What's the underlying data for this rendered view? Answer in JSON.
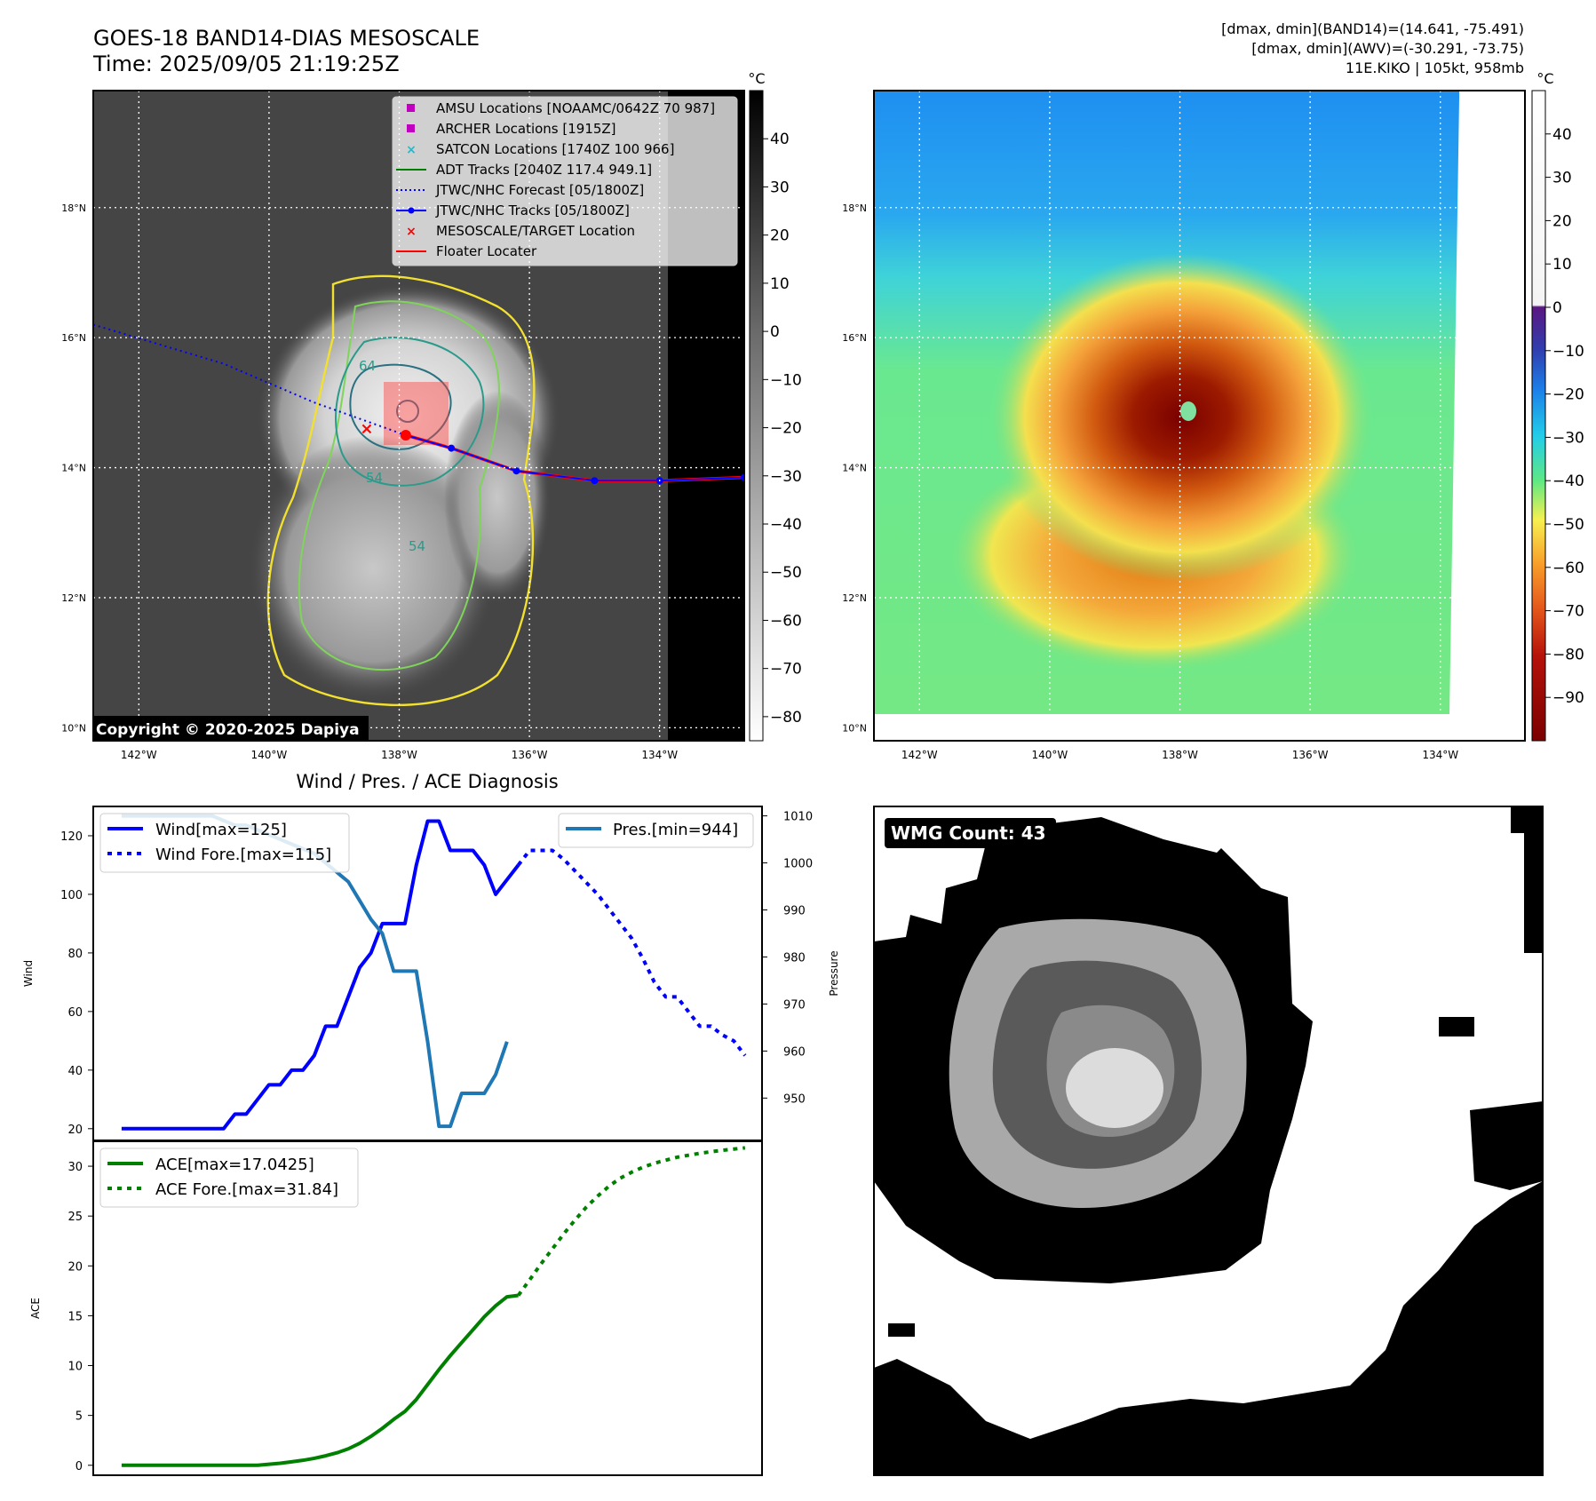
{
  "header": {
    "title": "GOES-18 BAND14-DIAS MESOSCALE",
    "time": "Time: 2025/09/05 21:19:25Z",
    "stats_line1": "[dmax, dmin](BAND14)=(14.641, -75.491)",
    "stats_line2": "[dmax, dmin](AWV)=(-30.291, -73.75)",
    "stats_line3": "11E.KIKO | 105kt, 958mb"
  },
  "map_grid": {
    "lon_labels": [
      "142°W",
      "140°W",
      "138°W",
      "136°W",
      "134°W"
    ],
    "lat_labels": [
      "18°N",
      "16°N",
      "14°N",
      "12°N",
      "10°N"
    ],
    "lon_extent": [
      -142.7,
      -132.7
    ],
    "lat_extent": [
      9.8,
      19.8
    ]
  },
  "ir_panel": {
    "colorbar_unit": "°C",
    "colorbar_ticks": [
      "40",
      "30",
      "20",
      "10",
      "0",
      "−10",
      "−20",
      "−30",
      "−40",
      "−50",
      "−60",
      "−70",
      "−80"
    ],
    "colorbar_range": [
      -85,
      50
    ],
    "copyright": "Copyright © 2020-2025 Dapiya",
    "contour_labels": [
      "64",
      "54",
      "54"
    ],
    "legend": [
      {
        "label": "AMSU Locations [NOAAMC/0642Z 70 987]",
        "marker": "square",
        "color": "#bf00bf"
      },
      {
        "label": "ARCHER Locations [1915Z]",
        "marker": "square",
        "color": "#bf00bf"
      },
      {
        "label": "SATCON Locations [1740Z 100 966]",
        "marker": "x",
        "color": "#17becf"
      },
      {
        "label": "ADT Tracks [2040Z 117.4 949.1]",
        "marker": "line",
        "color": "#008000"
      },
      {
        "label": "JTWC/NHC Forecast [05/1800Z]",
        "marker": "dotted",
        "color": "#0000ff"
      },
      {
        "label": "JTWC/NHC Tracks [05/1800Z]",
        "marker": "line-dot",
        "color": "#0000ff"
      },
      {
        "label": "MESOSCALE/TARGET Location",
        "marker": "x",
        "color": "#ff0000"
      },
      {
        "label": "Floater Locater",
        "marker": "line",
        "color": "#ff0000"
      }
    ],
    "storm_center": {
      "lon": -137.9,
      "lat": 14.5
    },
    "target_location": {
      "lon": -138.5,
      "lat": 14.6
    },
    "forecast_track": [
      [
        -142.7,
        16.2
      ],
      [
        -140.7,
        15.6
      ],
      [
        -139.3,
        15.0
      ],
      [
        -137.9,
        14.5
      ]
    ],
    "observed_track": [
      [
        -137.9,
        14.5
      ],
      [
        -137.2,
        14.3
      ],
      [
        -136.2,
        13.95
      ],
      [
        -135.0,
        13.8
      ],
      [
        -134.0,
        13.8
      ],
      [
        -132.7,
        13.85
      ]
    ]
  },
  "awv_panel": {
    "colorbar_unit": "°C",
    "colorbar_ticks": [
      "40",
      "30",
      "20",
      "10",
      "0",
      "−10",
      "−20",
      "−30",
      "−40",
      "−50",
      "−60",
      "−70",
      "−80",
      "−90"
    ],
    "colorbar_range": [
      -100,
      50
    ]
  },
  "chart_data": [
    {
      "type": "line",
      "title": "Wind / Pres. / ACE Diagnosis",
      "ylabel": "Wind",
      "ylabel_right": "Pressure",
      "ylim": [
        16,
        130
      ],
      "ylim_right": [
        941,
        1012
      ],
      "xlim": [
        -2.5,
        56.5
      ],
      "yticks": [
        20,
        40,
        60,
        80,
        100,
        120
      ],
      "yticks_right": [
        950,
        960,
        970,
        980,
        990,
        1000,
        1010
      ],
      "series": [
        {
          "name": "Wind[max=125]",
          "style": "solid",
          "color": "#0000ff",
          "x": [
            0,
            1,
            2,
            3,
            4,
            5,
            6,
            7,
            8,
            9,
            10,
            11,
            12,
            13,
            14,
            15,
            16,
            17,
            18,
            19,
            20,
            21,
            22,
            23,
            24,
            25,
            26,
            27,
            28,
            29,
            30,
            31,
            32,
            33,
            34,
            35
          ],
          "values": [
            20,
            20,
            20,
            20,
            20,
            20,
            20,
            20,
            20,
            20,
            25,
            25,
            30,
            35,
            35,
            40,
            40,
            45,
            55,
            55,
            65,
            75,
            80,
            90,
            90,
            90,
            110,
            125,
            125,
            115,
            115,
            115,
            110,
            100,
            105,
            110
          ]
        },
        {
          "name": "Wind Fore.[max=115]",
          "style": "dotted",
          "color": "#0000ff",
          "x": [
            35,
            36,
            37,
            38,
            39,
            40,
            41,
            42,
            43,
            44,
            45,
            46,
            47,
            48,
            49,
            50,
            51,
            52,
            53,
            54,
            55
          ],
          "values": [
            110,
            115,
            115,
            115,
            112,
            108,
            104,
            100,
            95,
            90,
            85,
            78,
            70,
            65,
            65,
            60,
            55,
            55,
            52,
            50,
            45
          ]
        },
        {
          "name": "Pres.[min=944]",
          "style": "solid",
          "color": "#1f77b4",
          "axis": "right",
          "x": [
            0,
            1,
            2,
            3,
            4,
            5,
            6,
            7,
            8,
            9,
            10,
            11,
            12,
            13,
            14,
            15,
            16,
            17,
            18,
            19,
            20,
            21,
            22,
            23,
            24,
            25,
            26,
            27,
            28,
            29,
            30,
            31,
            32,
            33,
            34
          ],
          "values": [
            1010,
            1010,
            1010,
            1010,
            1010,
            1010,
            1010,
            1010,
            1010,
            1009,
            1008,
            1008,
            1007,
            1006,
            1005,
            1004,
            1003,
            1002,
            1000,
            998,
            996,
            992,
            988,
            985,
            977,
            977,
            977,
            962,
            944,
            944,
            951,
            951,
            951,
            955,
            962
          ]
        }
      ]
    },
    {
      "type": "line",
      "ylabel": "ACE",
      "ylim": [
        -1,
        32.5
      ],
      "xlim": [
        -2.5,
        56.5
      ],
      "yticks": [
        0,
        5,
        10,
        15,
        20,
        25,
        30
      ],
      "series": [
        {
          "name": "ACE[max=17.0425]",
          "style": "solid",
          "color": "#008000",
          "x": [
            0,
            2,
            4,
            6,
            8,
            10,
            12,
            13,
            14,
            15,
            16,
            17,
            18,
            19,
            20,
            21,
            22,
            23,
            24,
            25,
            26,
            27,
            28,
            29,
            30,
            31,
            32,
            33,
            34,
            35
          ],
          "values": [
            0,
            0,
            0,
            0,
            0,
            0,
            0,
            0.1,
            0.2,
            0.35,
            0.5,
            0.7,
            0.95,
            1.25,
            1.65,
            2.2,
            2.9,
            3.7,
            4.6,
            5.4,
            6.6,
            8.1,
            9.6,
            11.0,
            12.3,
            13.6,
            14.9,
            16.0,
            16.9,
            17.04
          ]
        },
        {
          "name": "ACE Fore.[max=31.84]",
          "style": "dotted",
          "color": "#008000",
          "x": [
            35,
            36,
            37,
            38,
            39,
            40,
            41,
            42,
            43,
            44,
            45,
            46,
            47,
            48,
            49,
            50,
            51,
            52,
            53,
            54,
            55
          ],
          "values": [
            17.04,
            18.6,
            20.2,
            21.7,
            23.2,
            24.6,
            25.9,
            27.0,
            28.0,
            28.8,
            29.4,
            29.9,
            30.3,
            30.6,
            30.9,
            31.1,
            31.3,
            31.45,
            31.6,
            31.72,
            31.84
          ]
        }
      ]
    },
    {
      "type": "heatmap",
      "title": "WMG Count: 43",
      "levels": [
        "black",
        "white",
        "dark gray",
        "mid gray",
        "light gray",
        "lightest gray"
      ]
    }
  ]
}
